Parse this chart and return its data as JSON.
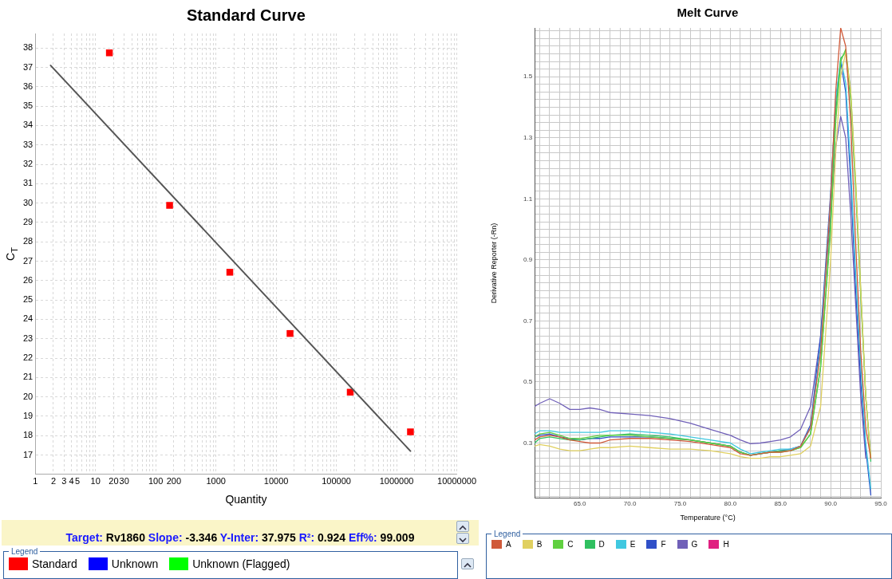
{
  "chart_data": [
    {
      "type": "scatter",
      "title": "Standard Curve",
      "xlabel": "Quantity",
      "ylabel": "C$_{T}$",
      "log": "x",
      "grid": true,
      "legend": "bottom",
      "legend_title": "Legend",
      "marker": "square",
      "xlim": [
        1,
        10000000
      ],
      "ylim": [
        16,
        38.75
      ],
      "xticks": [
        1,
        2,
        3,
        4,
        5,
        {
          "value": 6,
          "label": null
        },
        {
          "value": 7,
          "label": null
        },
        {
          "value": 8,
          "label": null
        },
        {
          "value": 9,
          "label": null
        },
        10,
        20,
        30,
        {
          "value": 40,
          "label": null
        },
        {
          "value": 50,
          "label": null
        },
        {
          "value": 60,
          "label": null
        },
        {
          "value": 70,
          "label": null
        },
        {
          "value": 80,
          "label": null
        },
        {
          "value": 90,
          "label": null
        },
        100,
        200,
        {
          "value": 300,
          "label": null
        },
        {
          "value": 400,
          "label": null
        },
        {
          "value": 500,
          "label": null
        },
        {
          "value": 600,
          "label": null
        },
        {
          "value": 700,
          "label": null
        },
        {
          "value": 800,
          "label": null
        },
        {
          "value": 900,
          "label": null
        },
        1000,
        {
          "value": 2000,
          "label": null
        },
        {
          "value": 3000,
          "label": null
        },
        {
          "value": 4000,
          "label": null
        },
        {
          "value": 5000,
          "label": null
        },
        {
          "value": 6000,
          "label": null
        },
        {
          "value": 7000,
          "label": null
        },
        {
          "value": 8000,
          "label": null
        },
        {
          "value": 9000,
          "label": null
        },
        10000,
        {
          "value": 20000,
          "label": null
        },
        {
          "value": 30000,
          "label": null
        },
        {
          "value": 40000,
          "label": null
        },
        {
          "value": 50000,
          "label": null
        },
        {
          "value": 60000,
          "label": null
        },
        {
          "value": 70000,
          "label": null
        },
        {
          "value": 80000,
          "label": null
        },
        {
          "value": 90000,
          "label": null
        },
        100000,
        {
          "value": 200000,
          "label": null
        },
        {
          "value": 300000,
          "label": null
        },
        {
          "value": 400000,
          "label": null
        },
        {
          "value": 500000,
          "label": null
        },
        {
          "value": 600000,
          "label": null
        },
        {
          "value": 700000,
          "label": null
        },
        {
          "value": 800000,
          "label": null
        },
        {
          "value": 900000,
          "label": null
        },
        1000000,
        {
          "value": 2000000,
          "label": null
        },
        {
          "value": 3000000,
          "label": null
        },
        {
          "value": 4000000,
          "label": null
        },
        {
          "value": 5000000,
          "label": null
        },
        {
          "value": 6000000,
          "label": null
        },
        {
          "value": 7000000,
          "label": null
        },
        {
          "value": 8000000,
          "label": null
        },
        {
          "value": 9000000,
          "label": null
        },
        10000000
      ],
      "yticks": [
        17,
        18,
        19,
        20,
        21,
        22,
        23,
        24,
        25,
        26,
        27,
        28,
        29,
        30,
        31,
        32,
        33,
        34,
        35,
        36,
        37,
        38
      ],
      "series": [
        {
          "type": "line",
          "color": "#555555",
          "marker": "none",
          "x": [
            1.8,
            1700000
          ],
          "values": [
            37.1,
            17.2
          ]
        },
        {
          "name": "Standard",
          "color": "#ff0000",
          "x": [
            17,
            170,
            1700,
            17000,
            170000,
            1700000
          ],
          "values": [
            37.75,
            29.88,
            26.43,
            23.27,
            20.24,
            18.19
          ]
        },
        {
          "name": "Unknown",
          "color": "#0000ff"
        },
        {
          "name": "Unknown (Flagged)",
          "color": "#00ff00"
        }
      ],
      "annotations": [
        "Target: Rv1860 Slope: -3.346 Y-Inter: 37.975 R²: 0.924 Eff%: 99.009"
      ]
    },
    {
      "type": "line",
      "title": "Melt Curve",
      "xlabel": "Temperature (°C)",
      "ylabel": "Derivative Reporter (-Rn)",
      "grid": true,
      "legend": "bottom",
      "legend_title": "Legend",
      "marker": "none",
      "line_style": "solid",
      "xlim": [
        60.5,
        95
      ],
      "ylim": [
        0.12,
        1.66
      ],
      "xticks": [
        {
          "value": 61,
          "label": null
        },
        {
          "value": 62,
          "label": null
        },
        {
          "value": 63,
          "label": null
        },
        {
          "value": 64,
          "label": null
        },
        {
          "value": 65,
          "label": "65.0"
        },
        {
          "value": 66,
          "label": null
        },
        {
          "value": 67,
          "label": null
        },
        {
          "value": 68,
          "label": null
        },
        {
          "value": 69,
          "label": null
        },
        {
          "value": 70,
          "label": "70.0"
        },
        {
          "value": 71,
          "label": null
        },
        {
          "value": 72,
          "label": null
        },
        {
          "value": 73,
          "label": null
        },
        {
          "value": 74,
          "label": null
        },
        {
          "value": 75,
          "label": "75.0"
        },
        {
          "value": 76,
          "label": null
        },
        {
          "value": 77,
          "label": null
        },
        {
          "value": 78,
          "label": null
        },
        {
          "value": 79,
          "label": null
        },
        {
          "value": 80,
          "label": "80.0"
        },
        {
          "value": 81,
          "label": null
        },
        {
          "value": 82,
          "label": null
        },
        {
          "value": 83,
          "label": null
        },
        {
          "value": 84,
          "label": null
        },
        {
          "value": 85,
          "label": "85.0"
        },
        {
          "value": 86,
          "label": null
        },
        {
          "value": 87,
          "label": null
        },
        {
          "value": 88,
          "label": null
        },
        {
          "value": 89,
          "label": null
        },
        {
          "value": 90,
          "label": "90.0"
        },
        {
          "value": 91,
          "label": null
        },
        {
          "value": 92,
          "label": null
        },
        {
          "value": 93,
          "label": null
        },
        {
          "value": 94,
          "label": null
        },
        {
          "value": 95,
          "label": "95.0"
        }
      ],
      "yticks": [
        {
          "value": 0.125,
          "label": null
        },
        {
          "value": 0.15,
          "label": null
        },
        {
          "value": 0.175,
          "label": null
        },
        {
          "value": 0.2,
          "label": null
        },
        {
          "value": 0.225,
          "label": null
        },
        {
          "value": 0.25,
          "label": null
        },
        {
          "value": 0.275,
          "label": null
        },
        0.3,
        {
          "value": 0.325,
          "label": null
        },
        {
          "value": 0.35,
          "label": null
        },
        {
          "value": 0.375,
          "label": null
        },
        {
          "value": 0.4,
          "label": null
        },
        {
          "value": 0.425,
          "label": null
        },
        {
          "value": 0.45,
          "label": null
        },
        {
          "value": 0.475,
          "label": null
        },
        0.5,
        {
          "value": 0.525,
          "label": null
        },
        {
          "value": 0.55,
          "label": null
        },
        {
          "value": 0.575,
          "label": null
        },
        {
          "value": 0.6,
          "label": null
        },
        {
          "value": 0.625,
          "label": null
        },
        {
          "value": 0.65,
          "label": null
        },
        {
          "value": 0.675,
          "label": null
        },
        0.7,
        {
          "value": 0.725,
          "label": null
        },
        {
          "value": 0.75,
          "label": null
        },
        {
          "value": 0.775,
          "label": null
        },
        {
          "value": 0.8,
          "label": null
        },
        {
          "value": 0.825,
          "label": null
        },
        {
          "value": 0.85,
          "label": null
        },
        {
          "value": 0.875,
          "label": null
        },
        0.9,
        {
          "value": 0.925,
          "label": null
        },
        {
          "value": 0.95,
          "label": null
        },
        {
          "value": 0.975,
          "label": null
        },
        {
          "value": 1.0,
          "label": null
        },
        {
          "value": 1.025,
          "label": null
        },
        {
          "value": 1.05,
          "label": null
        },
        {
          "value": 1.075,
          "label": null
        },
        1.1,
        {
          "value": 1.125,
          "label": null
        },
        {
          "value": 1.15,
          "label": null
        },
        {
          "value": 1.175,
          "label": null
        },
        {
          "value": 1.2,
          "label": null
        },
        {
          "value": 1.225,
          "label": null
        },
        {
          "value": 1.25,
          "label": null
        },
        {
          "value": 1.275,
          "label": null
        },
        1.3,
        {
          "value": 1.325,
          "label": null
        },
        {
          "value": 1.35,
          "label": null
        },
        {
          "value": 1.375,
          "label": null
        },
        {
          "value": 1.4,
          "label": null
        },
        {
          "value": 1.425,
          "label": null
        },
        {
          "value": 1.45,
          "label": null
        },
        {
          "value": 1.475,
          "label": null
        },
        1.5,
        {
          "value": 1.525,
          "label": null
        },
        {
          "value": 1.55,
          "label": null
        },
        {
          "value": 1.575,
          "label": null
        },
        {
          "value": 1.6,
          "label": null
        },
        {
          "value": 1.625,
          "label": null
        },
        {
          "value": 1.65,
          "label": null
        }
      ],
      "x": [
        60.5,
        61,
        62,
        63,
        64,
        65,
        66,
        67,
        68,
        70,
        72,
        74,
        76,
        78,
        80,
        81,
        82,
        83,
        84,
        85,
        86,
        87,
        88,
        89,
        90,
        90.5,
        91,
        91.5,
        92,
        92.5,
        93,
        93.5,
        94
      ],
      "series": [
        {
          "name": "A",
          "color": "#d05a3a",
          "values": [
            0.31,
            0.32,
            0.325,
            0.32,
            0.31,
            0.305,
            0.3,
            0.3,
            0.31,
            0.315,
            0.315,
            0.31,
            0.305,
            0.295,
            0.285,
            0.265,
            0.26,
            0.265,
            0.27,
            0.27,
            0.275,
            0.29,
            0.35,
            0.6,
            1.1,
            1.45,
            1.66,
            1.6,
            1.35,
            0.95,
            0.6,
            0.35,
            0.25
          ]
        },
        {
          "name": "B",
          "color": "#e0d060",
          "values": [
            0.29,
            0.295,
            0.29,
            0.28,
            0.275,
            0.275,
            0.28,
            0.285,
            0.285,
            0.29,
            0.285,
            0.28,
            0.28,
            0.275,
            0.265,
            0.255,
            0.25,
            0.25,
            0.255,
            0.255,
            0.26,
            0.265,
            0.29,
            0.42,
            0.9,
            1.25,
            1.5,
            1.58,
            1.45,
            1.15,
            0.8,
            0.45,
            0.25
          ]
        },
        {
          "name": "C",
          "color": "#60d040",
          "values": [
            0.32,
            0.33,
            0.335,
            0.325,
            0.315,
            0.315,
            0.32,
            0.325,
            0.325,
            0.325,
            0.32,
            0.315,
            0.31,
            0.3,
            0.29,
            0.27,
            0.26,
            0.265,
            0.27,
            0.27,
            0.275,
            0.285,
            0.33,
            0.55,
            1.0,
            1.35,
            1.55,
            1.59,
            1.45,
            1.15,
            0.8,
            0.45,
            0.25
          ]
        },
        {
          "name": "D",
          "color": "#30c060",
          "values": [
            0.3,
            0.315,
            0.32,
            0.315,
            0.31,
            0.31,
            0.315,
            0.32,
            0.325,
            0.33,
            0.325,
            0.32,
            0.31,
            0.3,
            0.29,
            0.27,
            0.26,
            0.265,
            0.27,
            0.275,
            0.275,
            0.285,
            0.33,
            0.55,
            1.02,
            1.38,
            1.56,
            1.58,
            1.42,
            1.12,
            0.78,
            0.45,
            0.24
          ]
        },
        {
          "name": "E",
          "color": "#40c8e0",
          "values": [
            0.33,
            0.34,
            0.34,
            0.335,
            0.335,
            0.335,
            0.335,
            0.335,
            0.34,
            0.34,
            0.335,
            0.33,
            0.32,
            0.31,
            0.3,
            0.28,
            0.265,
            0.27,
            0.275,
            0.28,
            0.28,
            0.29,
            0.35,
            0.62,
            1.1,
            1.42,
            1.56,
            1.48,
            1.2,
            0.85,
            0.55,
            0.3,
            0.15
          ]
        },
        {
          "name": "F",
          "color": "#3050c8",
          "values": [
            0.32,
            0.325,
            0.33,
            0.32,
            0.315,
            0.31,
            0.315,
            0.315,
            0.32,
            0.32,
            0.32,
            0.315,
            0.31,
            0.3,
            0.29,
            0.27,
            0.26,
            0.265,
            0.27,
            0.275,
            0.28,
            0.29,
            0.36,
            0.65,
            1.12,
            1.42,
            1.55,
            1.45,
            1.15,
            0.8,
            0.5,
            0.28,
            0.13
          ]
        },
        {
          "name": "G",
          "color": "#7060b8",
          "values": [
            0.42,
            0.43,
            0.445,
            0.43,
            0.41,
            0.41,
            0.415,
            0.41,
            0.4,
            0.395,
            0.39,
            0.38,
            0.365,
            0.345,
            0.325,
            0.31,
            0.298,
            0.3,
            0.305,
            0.31,
            0.32,
            0.345,
            0.42,
            0.65,
            1.05,
            1.27,
            1.37,
            1.3,
            1.05,
            0.75,
            0.45,
            0.25,
            null
          ]
        },
        {
          "name": "H",
          "color": "#e02080",
          "values": [
            null,
            null,
            null,
            null,
            null,
            null,
            null,
            null,
            null,
            null,
            null,
            null,
            null,
            null,
            null,
            null,
            null,
            null,
            null,
            null,
            null,
            null,
            null,
            null,
            null,
            null,
            null,
            null,
            null,
            null,
            null,
            null,
            null
          ]
        }
      ]
    }
  ]
}
